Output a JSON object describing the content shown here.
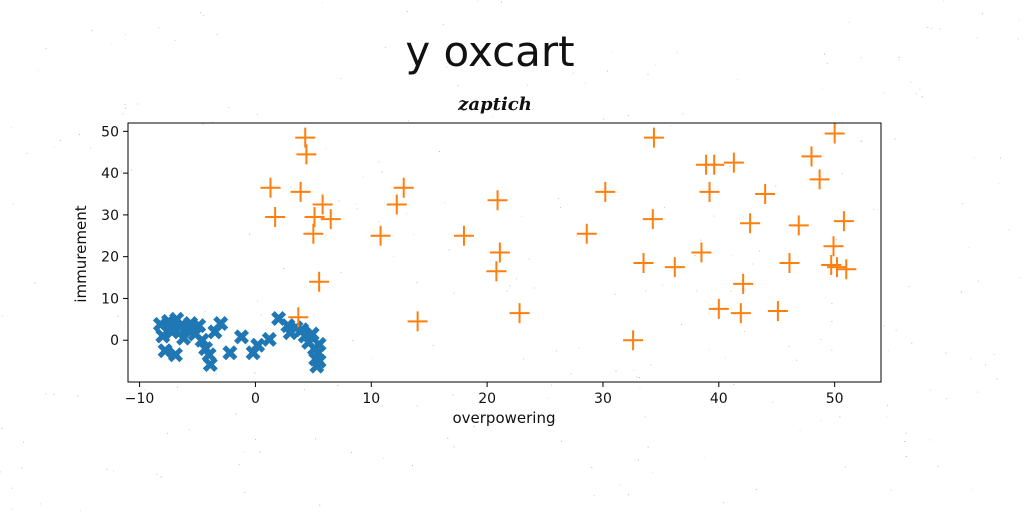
{
  "chart_data": {
    "type": "scatter",
    "title": "y oxcart",
    "subtitle": "zaptich",
    "xlabel": "overpowering",
    "ylabel": "immurement",
    "xlim": [
      -11,
      54
    ],
    "ylim": [
      -10,
      52
    ],
    "xticks": [
      -10,
      0,
      10,
      20,
      30,
      40,
      50
    ],
    "yticks": [
      0,
      10,
      20,
      30,
      40,
      50
    ],
    "xtick_labels": [
      "−10",
      "0",
      "10",
      "20",
      "30",
      "40",
      "50"
    ],
    "ytick_labels": [
      "0",
      "10",
      "20",
      "30",
      "40",
      "50"
    ],
    "grid": false,
    "legend": "none",
    "colors": {
      "series1": "#1f77b4",
      "series2": "#ff7f0e"
    },
    "series": [
      {
        "name": "series 1",
        "marker": "X",
        "points": [
          [
            -8.2,
            3.8
          ],
          [
            -8.0,
            1.0
          ],
          [
            -7.8,
            -2.5
          ],
          [
            -7.5,
            4.5
          ],
          [
            -7.2,
            2.0
          ],
          [
            -6.9,
            -3.5
          ],
          [
            -6.8,
            5.0
          ],
          [
            -6.5,
            3.2
          ],
          [
            -6.2,
            0.5
          ],
          [
            -5.9,
            2.8
          ],
          [
            -5.6,
            4.0
          ],
          [
            -5.2,
            1.5
          ],
          [
            -4.9,
            3.5
          ],
          [
            -4.6,
            0.0
          ],
          [
            -4.3,
            -2.0
          ],
          [
            -4.0,
            -3.5
          ],
          [
            -3.9,
            -5.8
          ],
          [
            -3.5,
            2.0
          ],
          [
            -3.0,
            4.0
          ],
          [
            -2.2,
            -3.0
          ],
          [
            -1.2,
            0.8
          ],
          [
            -0.2,
            -3.0
          ],
          [
            0.2,
            -1.2
          ],
          [
            1.2,
            0.2
          ],
          [
            2.0,
            5.2
          ],
          [
            2.8,
            3.5
          ],
          [
            3.0,
            1.8
          ],
          [
            3.5,
            3.0
          ],
          [
            4.0,
            2.5
          ],
          [
            4.3,
            1.0
          ],
          [
            4.6,
            -0.5
          ],
          [
            4.9,
            1.5
          ],
          [
            5.1,
            -2.0
          ],
          [
            5.2,
            -4.5
          ],
          [
            5.3,
            -6.2
          ],
          [
            5.4,
            -3.0
          ],
          [
            5.5,
            -5.0
          ],
          [
            5.5,
            -1.0
          ]
        ]
      },
      {
        "name": "series 2",
        "marker": "+",
        "points": [
          [
            1.3,
            36.5
          ],
          [
            1.7,
            29.5
          ],
          [
            3.7,
            5.5
          ],
          [
            3.9,
            35.5
          ],
          [
            4.3,
            48.5
          ],
          [
            4.4,
            44.5
          ],
          [
            5.0,
            25.5
          ],
          [
            5.1,
            29.5
          ],
          [
            5.5,
            14.0
          ],
          [
            5.8,
            32.5
          ],
          [
            6.5,
            29.0
          ],
          [
            10.8,
            25.0
          ],
          [
            12.2,
            32.5
          ],
          [
            12.8,
            36.5
          ],
          [
            14.0,
            4.5
          ],
          [
            18.0,
            25.0
          ],
          [
            20.8,
            16.5
          ],
          [
            20.9,
            33.5
          ],
          [
            21.1,
            21.0
          ],
          [
            22.8,
            6.5
          ],
          [
            28.6,
            25.5
          ],
          [
            30.2,
            35.5
          ],
          [
            32.6,
            0.0
          ],
          [
            33.5,
            18.5
          ],
          [
            34.3,
            29.0
          ],
          [
            34.4,
            48.5
          ],
          [
            36.2,
            17.5
          ],
          [
            38.5,
            21.0
          ],
          [
            38.9,
            42.0
          ],
          [
            39.2,
            35.5
          ],
          [
            39.6,
            42.0
          ],
          [
            40.0,
            7.5
          ],
          [
            41.3,
            42.5
          ],
          [
            41.9,
            6.5
          ],
          [
            42.1,
            13.5
          ],
          [
            42.7,
            28.0
          ],
          [
            44.0,
            35.0
          ],
          [
            45.1,
            7.0
          ],
          [
            46.1,
            18.5
          ],
          [
            46.9,
            27.5
          ],
          [
            48.0,
            44.0
          ],
          [
            48.7,
            38.5
          ],
          [
            49.7,
            18.0
          ],
          [
            49.9,
            22.5
          ],
          [
            50.0,
            49.5
          ],
          [
            50.2,
            17.5
          ],
          [
            50.8,
            28.5
          ],
          [
            51.0,
            17.0
          ]
        ]
      }
    ]
  }
}
